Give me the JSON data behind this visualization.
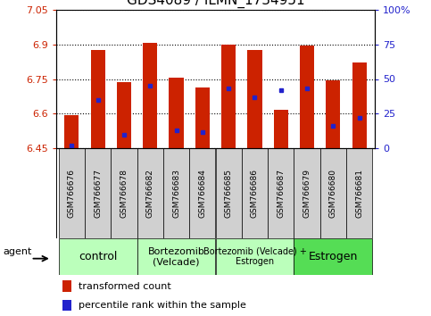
{
  "title": "GDS4089 / ILMN_1734951",
  "samples": [
    "GSM766676",
    "GSM766677",
    "GSM766678",
    "GSM766682",
    "GSM766683",
    "GSM766684",
    "GSM766685",
    "GSM766686",
    "GSM766687",
    "GSM766679",
    "GSM766680",
    "GSM766681"
  ],
  "bar_tops": [
    6.595,
    6.875,
    6.735,
    6.905,
    6.755,
    6.715,
    6.9,
    6.875,
    6.618,
    6.895,
    6.745,
    6.822
  ],
  "percentile_pct": [
    2,
    35,
    10,
    45,
    13,
    12,
    43,
    37,
    42,
    43,
    16,
    22
  ],
  "baseline": 6.45,
  "ylim_left": [
    6.45,
    7.05
  ],
  "ylim_right": [
    0,
    100
  ],
  "yticks_left": [
    6.45,
    6.6,
    6.75,
    6.9,
    7.05
  ],
  "yticks_right": [
    0,
    25,
    50,
    75,
    100
  ],
  "bar_color": "#cc2200",
  "dot_color": "#2222cc",
  "groups": [
    {
      "label": "control",
      "start": 0,
      "end": 3,
      "color": "#bbffbb",
      "fontsize": 9
    },
    {
      "label": "Bortezomib\n(Velcade)",
      "start": 3,
      "end": 6,
      "color": "#bbffbb",
      "fontsize": 8
    },
    {
      "label": "Bortezomib (Velcade) +\nEstrogen",
      "start": 6,
      "end": 9,
      "color": "#bbffbb",
      "fontsize": 7
    },
    {
      "label": "Estrogen",
      "start": 9,
      "end": 12,
      "color": "#55dd55",
      "fontsize": 9
    }
  ],
  "bar_width": 0.55,
  "title_fontsize": 11,
  "sample_fontsize": 6.5,
  "agent_label": "agent"
}
